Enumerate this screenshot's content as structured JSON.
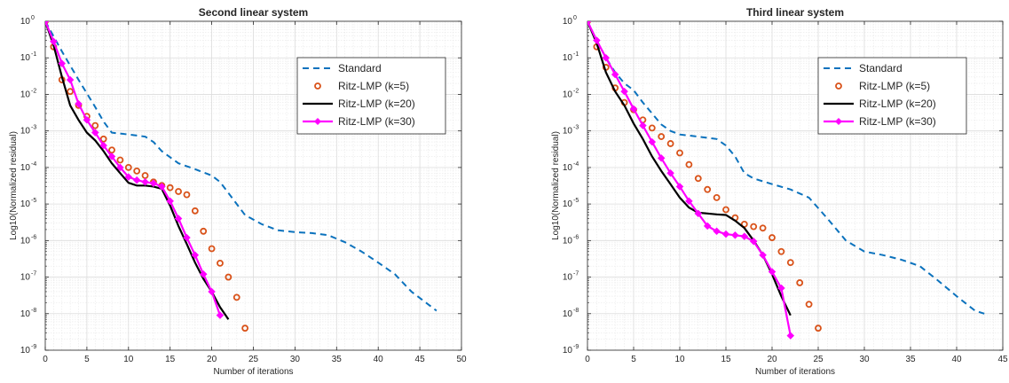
{
  "chart_data": [
    {
      "type": "line",
      "title": "Second linear system",
      "xlabel": "Number of iterations",
      "ylabel": "Log10(Normalized residual)",
      "xlim": [
        0,
        50
      ],
      "ylim_exponent": [
        -9,
        0
      ],
      "yscale": "log",
      "grid": "major and minor",
      "legend_position": "top-right",
      "x_ticks": [
        0,
        5,
        10,
        15,
        20,
        25,
        30,
        35,
        40,
        45,
        50
      ],
      "series": [
        {
          "name": "Standard",
          "style": "dashed",
          "color": "#0b72bd",
          "x": [
            0,
            2,
            4,
            6,
            7,
            8,
            10,
            12,
            13,
            14,
            16,
            18,
            20,
            21,
            22,
            24,
            26,
            28,
            30,
            32,
            34,
            36,
            38,
            40,
            42,
            44,
            46,
            47
          ],
          "y": [
            1,
            0.15,
            0.025,
            0.0045,
            0.0018,
            0.0009,
            0.0008,
            0.0007,
            0.0005,
            0.00028,
            0.00013,
            9e-05,
            6e-05,
            4e-05,
            2e-05,
            5e-06,
            2.8e-06,
            1.9e-06,
            1.7e-06,
            1.6e-06,
            1.4e-06,
            9e-07,
            5e-07,
            2.5e-07,
            1.2e-07,
            4e-08,
            1.8e-08,
            1.2e-08
          ]
        },
        {
          "name": "Ritz-LMP (k=5)",
          "style": "markers",
          "color": "#d95219",
          "x": [
            0,
            1,
            2,
            3,
            4,
            5,
            6,
            7,
            8,
            9,
            10,
            11,
            12,
            13,
            14,
            15,
            16,
            17,
            18,
            19,
            20,
            21,
            22,
            23,
            24
          ],
          "y": [
            1,
            0.2,
            0.025,
            0.012,
            0.005,
            0.0025,
            0.0014,
            0.0006,
            0.0003,
            0.00016,
            0.0001,
            8e-05,
            6e-05,
            4e-05,
            3.2e-05,
            2.8e-05,
            2.2e-05,
            1.8e-05,
            6.5e-06,
            1.8e-06,
            6e-07,
            2.4e-07,
            1e-07,
            2.8e-08,
            4e-09
          ]
        },
        {
          "name": "Ritz-LMP (k=20)",
          "style": "solid",
          "color": "#000000",
          "x": [
            0,
            1,
            2,
            3,
            4,
            5,
            6,
            7,
            8,
            9,
            10,
            11,
            12,
            13,
            14,
            15,
            16,
            17,
            18,
            19,
            20,
            21,
            22
          ],
          "y": [
            1,
            0.22,
            0.03,
            0.005,
            0.002,
            0.0009,
            0.00055,
            0.00028,
            0.00013,
            7e-05,
            3.8e-05,
            3.2e-05,
            3.2e-05,
            3e-05,
            2.6e-05,
            9e-06,
            2.5e-06,
            8e-07,
            2.5e-07,
            9e-08,
            4e-08,
            1.5e-08,
            7e-09
          ]
        },
        {
          "name": "Ritz-LMP (k=30)",
          "style": "solid-diamond",
          "color": "#ff00ff",
          "x": [
            0,
            1,
            2,
            3,
            4,
            5,
            6,
            7,
            8,
            9,
            10,
            11,
            12,
            13,
            14,
            15,
            16,
            17,
            18,
            19,
            20,
            21
          ],
          "y": [
            1,
            0.28,
            0.07,
            0.025,
            0.0055,
            0.002,
            0.0009,
            0.0004,
            0.0002,
            0.0001,
            5.5e-05,
            4.5e-05,
            4e-05,
            3.7e-05,
            3e-05,
            1.2e-05,
            4e-06,
            1.2e-06,
            4e-07,
            1.2e-07,
            4e-08,
            9e-09
          ]
        }
      ]
    },
    {
      "type": "line",
      "title": "Third linear system",
      "xlabel": "Number of iterations",
      "ylabel": "Log10(Normalized residual)",
      "xlim": [
        0,
        45
      ],
      "ylim_exponent": [
        -9,
        0
      ],
      "yscale": "log",
      "grid": "major and minor",
      "legend_position": "top-right",
      "x_ticks": [
        0,
        5,
        10,
        15,
        20,
        25,
        30,
        35,
        40,
        45
      ],
      "series": [
        {
          "name": "Standard",
          "style": "dashed",
          "color": "#0b72bd",
          "x": [
            0,
            1,
            2,
            3,
            4,
            5,
            6,
            7,
            8,
            9,
            10,
            12,
            14,
            15,
            16,
            17,
            18,
            20,
            22,
            24,
            26,
            28,
            30,
            32,
            34,
            36,
            38,
            40,
            42,
            43
          ],
          "y": [
            1,
            0.3,
            0.1,
            0.04,
            0.02,
            0.013,
            0.006,
            0.003,
            0.0015,
            0.001,
            0.0008,
            0.0007,
            0.0006,
            0.0004,
            0.0002,
            7e-05,
            5e-05,
            3.5e-05,
            2.5e-05,
            1.5e-05,
            4e-06,
            1e-06,
            5e-07,
            4e-07,
            3e-07,
            2e-07,
            8e-08,
            3e-08,
            1.2e-08,
            1e-08
          ]
        },
        {
          "name": "Ritz-LMP (k=5)",
          "style": "markers",
          "color": "#d95219",
          "x": [
            0,
            1,
            2,
            3,
            4,
            5,
            6,
            7,
            8,
            9,
            10,
            11,
            12,
            13,
            14,
            15,
            16,
            17,
            18,
            19,
            20,
            21,
            22,
            23,
            24,
            25
          ],
          "y": [
            1,
            0.2,
            0.055,
            0.015,
            0.006,
            0.0038,
            0.002,
            0.0012,
            0.0007,
            0.00045,
            0.00025,
            0.00012,
            5e-05,
            2.5e-05,
            1.5e-05,
            7e-06,
            4.2e-06,
            2.8e-06,
            2.4e-06,
            2.2e-06,
            1.2e-06,
            5e-07,
            2.5e-07,
            7e-08,
            1.8e-08,
            4e-09
          ]
        },
        {
          "name": "Ritz-LMP (k=20)",
          "style": "solid",
          "color": "#000000",
          "x": [
            0,
            1,
            2,
            3,
            4,
            5,
            6,
            7,
            8,
            9,
            10,
            11,
            12,
            13,
            14,
            15,
            16,
            17,
            18,
            19,
            20,
            21,
            22
          ],
          "y": [
            1,
            0.25,
            0.04,
            0.012,
            0.005,
            0.0016,
            0.0006,
            0.0002,
            8e-05,
            3.5e-05,
            1.5e-05,
            8e-06,
            5.8e-06,
            5.5e-06,
            5.2e-06,
            5e-06,
            3.5e-06,
            2.2e-06,
            1e-06,
            4e-07,
            1.2e-07,
            3e-08,
            9e-09
          ]
        },
        {
          "name": "Ritz-LMP (k=30)",
          "style": "solid-diamond",
          "color": "#ff00ff",
          "x": [
            0,
            1,
            2,
            3,
            4,
            5,
            6,
            7,
            8,
            9,
            10,
            11,
            12,
            13,
            14,
            15,
            16,
            17,
            18,
            19,
            20,
            21,
            22
          ],
          "y": [
            1,
            0.3,
            0.1,
            0.035,
            0.012,
            0.004,
            0.0014,
            0.0005,
            0.00018,
            7e-05,
            3e-05,
            1.2e-05,
            5.5e-06,
            2.5e-06,
            1.8e-06,
            1.5e-06,
            1.4e-06,
            1.3e-06,
            9.5e-07,
            4e-07,
            1.4e-07,
            5e-08,
            2.5e-09
          ]
        }
      ]
    }
  ]
}
